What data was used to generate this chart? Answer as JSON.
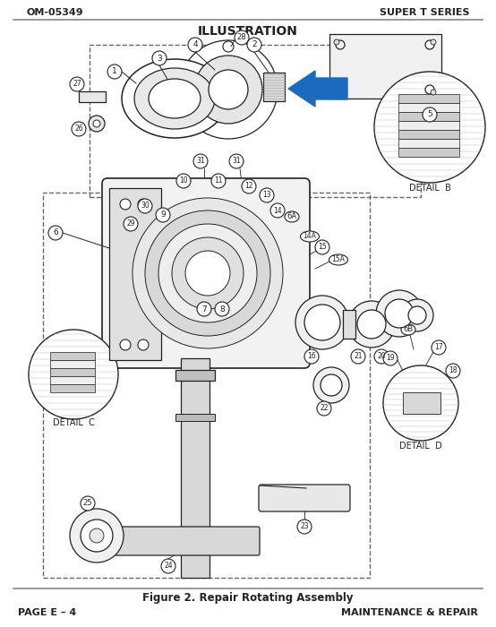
{
  "header_left": "OM-05349",
  "header_right": "SUPER T SERIES",
  "title": "ILLUSTRATION",
  "footer_caption": "Figure 2. Repair Rotating Assembly",
  "footer_left": "PAGE E – 4",
  "footer_right": "MAINTENANCE & REPAIR",
  "bg_color": "#ffffff",
  "line_color": "#333333",
  "arrow_color": "#1a6bbf"
}
